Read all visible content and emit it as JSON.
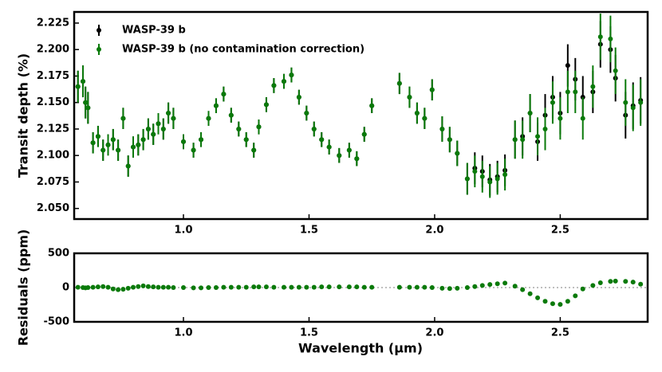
{
  "chart_data": [
    {
      "type": "errorbar",
      "ylabel": "Transit depth (%)",
      "legend": "upper left",
      "grid": false,
      "x": [
        0.58,
        0.6,
        0.61,
        0.62,
        0.64,
        0.66,
        0.68,
        0.7,
        0.72,
        0.74,
        0.76,
        0.78,
        0.8,
        0.82,
        0.84,
        0.86,
        0.88,
        0.9,
        0.92,
        0.94,
        0.96,
        1.0,
        1.04,
        1.07,
        1.1,
        1.13,
        1.16,
        1.19,
        1.22,
        1.25,
        1.28,
        1.3,
        1.33,
        1.36,
        1.4,
        1.43,
        1.46,
        1.49,
        1.52,
        1.55,
        1.58,
        1.62,
        1.66,
        1.69,
        1.72,
        1.75,
        1.86,
        1.9,
        1.93,
        1.96,
        1.99,
        2.03,
        2.06,
        2.09,
        2.13,
        2.16,
        2.19,
        2.22,
        2.25,
        2.28,
        2.32,
        2.35,
        2.38,
        2.41,
        2.44,
        2.47,
        2.5,
        2.53,
        2.56,
        2.59,
        2.63,
        2.66,
        2.7,
        2.72,
        2.76,
        2.79,
        2.82
      ],
      "series": [
        {
          "name": "WASP-39 b",
          "color": "#000000",
          "values": [
            2.165,
            2.17,
            2.15,
            2.145,
            2.112,
            2.118,
            2.105,
            2.11,
            2.115,
            2.105,
            2.135,
            2.09,
            2.108,
            2.11,
            2.115,
            2.125,
            2.12,
            2.13,
            2.125,
            2.14,
            2.135,
            2.113,
            2.105,
            2.115,
            2.135,
            2.147,
            2.158,
            2.138,
            2.125,
            2.115,
            2.105,
            2.127,
            2.148,
            2.166,
            2.17,
            2.176,
            2.155,
            2.14,
            2.125,
            2.115,
            2.108,
            2.1,
            2.105,
            2.097,
            2.12,
            2.147,
            2.168,
            2.155,
            2.14,
            2.135,
            2.162,
            2.125,
            2.115,
            2.102,
            2.078,
            2.088,
            2.085,
            2.077,
            2.08,
            2.086,
            2.115,
            2.118,
            2.14,
            2.113,
            2.138,
            2.155,
            2.14,
            2.185,
            2.172,
            2.155,
            2.16,
            2.205,
            2.2,
            2.173,
            2.138,
            2.147,
            2.152
          ],
          "errors": [
            0.015,
            0.015,
            0.015,
            0.015,
            0.01,
            0.01,
            0.01,
            0.01,
            0.01,
            0.01,
            0.01,
            0.01,
            0.01,
            0.01,
            0.01,
            0.01,
            0.01,
            0.01,
            0.01,
            0.01,
            0.01,
            0.007,
            0.007,
            0.007,
            0.007,
            0.007,
            0.007,
            0.007,
            0.007,
            0.007,
            0.007,
            0.007,
            0.007,
            0.007,
            0.007,
            0.007,
            0.007,
            0.007,
            0.007,
            0.007,
            0.007,
            0.007,
            0.007,
            0.007,
            0.007,
            0.007,
            0.01,
            0.01,
            0.01,
            0.01,
            0.01,
            0.012,
            0.012,
            0.012,
            0.015,
            0.015,
            0.015,
            0.015,
            0.015,
            0.015,
            0.018,
            0.018,
            0.018,
            0.018,
            0.02,
            0.02,
            0.02,
            0.02,
            0.02,
            0.02,
            0.02,
            0.022,
            0.022,
            0.022,
            0.022,
            0.022,
            0.022
          ]
        },
        {
          "name": "WASP-39 b (no contamination correction)",
          "color": "#0a7a0a",
          "values": [
            2.165,
            2.17,
            2.15,
            2.145,
            2.112,
            2.118,
            2.105,
            2.11,
            2.115,
            2.105,
            2.135,
            2.09,
            2.108,
            2.11,
            2.115,
            2.125,
            2.12,
            2.13,
            2.125,
            2.14,
            2.135,
            2.113,
            2.105,
            2.115,
            2.135,
            2.147,
            2.158,
            2.138,
            2.125,
            2.115,
            2.105,
            2.127,
            2.148,
            2.166,
            2.17,
            2.176,
            2.155,
            2.14,
            2.125,
            2.115,
            2.108,
            2.1,
            2.105,
            2.097,
            2.12,
            2.147,
            2.168,
            2.155,
            2.14,
            2.135,
            2.162,
            2.125,
            2.115,
            2.102,
            2.078,
            2.085,
            2.08,
            2.075,
            2.078,
            2.082,
            2.115,
            2.115,
            2.14,
            2.118,
            2.125,
            2.15,
            2.135,
            2.16,
            2.16,
            2.135,
            2.165,
            2.212,
            2.21,
            2.18,
            2.15,
            2.145,
            2.15
          ],
          "errors": [
            0.015,
            0.015,
            0.015,
            0.015,
            0.01,
            0.01,
            0.01,
            0.01,
            0.01,
            0.01,
            0.01,
            0.01,
            0.01,
            0.01,
            0.01,
            0.01,
            0.01,
            0.01,
            0.01,
            0.01,
            0.01,
            0.007,
            0.007,
            0.007,
            0.007,
            0.007,
            0.007,
            0.007,
            0.007,
            0.007,
            0.007,
            0.007,
            0.007,
            0.007,
            0.007,
            0.007,
            0.007,
            0.007,
            0.007,
            0.007,
            0.007,
            0.007,
            0.007,
            0.007,
            0.007,
            0.007,
            0.01,
            0.01,
            0.01,
            0.01,
            0.01,
            0.012,
            0.012,
            0.012,
            0.015,
            0.015,
            0.015,
            0.015,
            0.015,
            0.015,
            0.018,
            0.018,
            0.018,
            0.018,
            0.02,
            0.02,
            0.02,
            0.02,
            0.02,
            0.02,
            0.02,
            0.022,
            0.022,
            0.022,
            0.022,
            0.022,
            0.022
          ]
        }
      ],
      "xlim": [
        0.565,
        2.848
      ],
      "xticks": [
        {
          "value": 1.0,
          "label": "1.0"
        },
        1.5,
        {
          "value": 2.0,
          "label": "2.0"
        },
        2.5
      ],
      "ylim": [
        2.04,
        2.2355
      ],
      "yticks": [
        {
          "value": 2.05,
          "label": "2.050"
        },
        2.075,
        {
          "value": 2.1,
          "label": "2.100"
        },
        2.125,
        {
          "value": 2.15,
          "label": "2.150"
        },
        2.175,
        {
          "value": 2.2,
          "label": "2.200"
        },
        2.225
      ]
    },
    {
      "type": "scatter",
      "ylabel": "Residuals (ppm)",
      "xlabel": "Wavelength (μm)",
      "ref_line": 0,
      "x": [
        0.58,
        0.6,
        0.61,
        0.62,
        0.64,
        0.66,
        0.68,
        0.7,
        0.72,
        0.74,
        0.76,
        0.78,
        0.8,
        0.82,
        0.84,
        0.86,
        0.88,
        0.9,
        0.92,
        0.94,
        0.96,
        1.0,
        1.04,
        1.07,
        1.1,
        1.13,
        1.16,
        1.19,
        1.22,
        1.25,
        1.28,
        1.3,
        1.33,
        1.36,
        1.4,
        1.43,
        1.46,
        1.49,
        1.52,
        1.55,
        1.58,
        1.62,
        1.66,
        1.69,
        1.72,
        1.75,
        1.86,
        1.9,
        1.93,
        1.96,
        1.99,
        2.03,
        2.06,
        2.09,
        2.13,
        2.16,
        2.19,
        2.22,
        2.25,
        2.28,
        2.32,
        2.35,
        2.38,
        2.41,
        2.44,
        2.47,
        2.5,
        2.53,
        2.56,
        2.59,
        2.63,
        2.66,
        2.7,
        2.72,
        2.76,
        2.79,
        2.82
      ],
      "series": [
        {
          "color": "#0a7a0a",
          "values": [
            5,
            0,
            -5,
            0,
            5,
            10,
            15,
            5,
            -20,
            -30,
            -25,
            -10,
            5,
            15,
            25,
            15,
            10,
            5,
            5,
            5,
            0,
            0,
            -5,
            -5,
            0,
            0,
            5,
            5,
            5,
            5,
            10,
            10,
            10,
            5,
            5,
            5,
            5,
            5,
            5,
            10,
            10,
            10,
            10,
            10,
            5,
            5,
            5,
            5,
            5,
            5,
            0,
            -10,
            -15,
            -10,
            0,
            15,
            30,
            45,
            55,
            65,
            20,
            -30,
            -90,
            -150,
            -200,
            -235,
            -245,
            -200,
            -120,
            -20,
            30,
            70,
            90,
            95,
            90,
            80,
            50
          ]
        }
      ],
      "xlim": [
        0.565,
        2.848
      ],
      "xticks": [
        {
          "value": 1.0,
          "label": "1.0"
        },
        1.5,
        {
          "value": 2.0,
          "label": "2.0"
        },
        2.5
      ],
      "ylim": [
        -500,
        500
      ],
      "yticks": [
        -500,
        0,
        500
      ]
    }
  ]
}
